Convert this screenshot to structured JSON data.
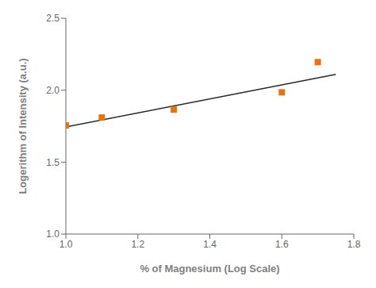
{
  "chart_data": {
    "type": "scatter",
    "xlabel": "% of Magnesium (Log Scale)",
    "ylabel": "Logerithm of Intensity (a.u.)",
    "series": [
      {
        "type": "line",
        "color": "#2a2a2a",
        "line_style": "solid",
        "x": [
          1.0,
          1.75
        ],
        "values": [
          1.745,
          2.11
        ]
      },
      {
        "type": "scatter",
        "color": "#E8720C",
        "marker": "square",
        "x": [
          1.0,
          1.1,
          1.3,
          1.6,
          1.7
        ],
        "values": [
          1.755,
          1.81,
          1.865,
          1.985,
          2.195
        ]
      }
    ],
    "xlim": [
      1.0,
      1.8
    ],
    "ylim": [
      1.0,
      2.5
    ],
    "xticks": [
      {
        "value": 1.0,
        "label": "1.0"
      },
      1.2,
      1.4,
      1.6,
      1.8
    ],
    "yticks": [
      {
        "value": 1.0,
        "label": "1.0"
      },
      1.5,
      {
        "value": 2.0,
        "label": "2.0"
      },
      2.5
    ],
    "grid": false
  }
}
